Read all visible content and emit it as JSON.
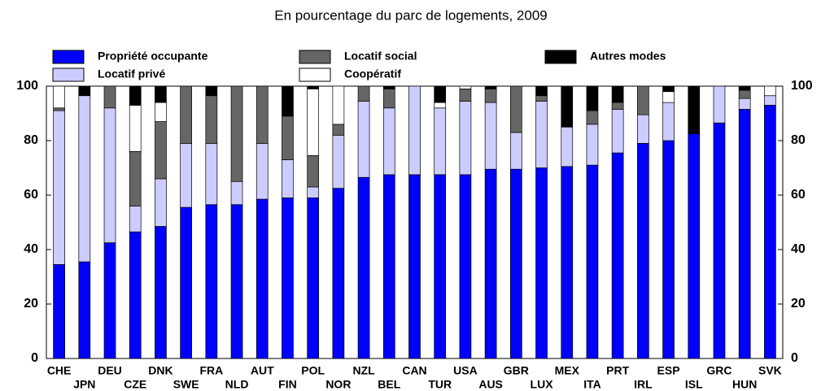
{
  "chart_data": {
    "type": "stacked_bar",
    "title": "En pourcentage du parc de logements, 2009",
    "categories": [
      "CHE",
      "JPN",
      "DEU",
      "CZE",
      "DNK",
      "SWE",
      "FRA",
      "NLD",
      "AUT",
      "FIN",
      "POL",
      "NOR",
      "NZL",
      "BEL",
      "CAN",
      "TUR",
      "USA",
      "AUS",
      "GBR",
      "LUX",
      "MEX",
      "ITA",
      "PRT",
      "IRL",
      "ESP",
      "ISL",
      "GRC",
      "HUN",
      "SVK"
    ],
    "series": [
      {
        "name": "Propriété occupante",
        "color": "#0000ff",
        "values": [
          34.5,
          35.5,
          42.5,
          46.5,
          48.5,
          55.5,
          56.5,
          56.5,
          58.5,
          59,
          59,
          62.5,
          66.5,
          67.5,
          67.5,
          67.5,
          67.5,
          69.5,
          69.5,
          70,
          70.5,
          71,
          75.5,
          79,
          80,
          82.5,
          86.5,
          91.5,
          93
        ]
      },
      {
        "name": "Locatif privé",
        "color": "#ccccff",
        "values": [
          56.5,
          61,
          49.5,
          9.5,
          17.5,
          23.5,
          22.5,
          8.5,
          20.5,
          14,
          4,
          19.5,
          28,
          24.5,
          32.5,
          24.5,
          27,
          24.5,
          13.5,
          24.5,
          14.5,
          15,
          16,
          10.5,
          14,
          0,
          13.5,
          4,
          3.5
        ]
      },
      {
        "name": "Locatif social",
        "color": "#666666",
        "values": [
          1,
          0,
          8,
          20,
          21,
          21,
          17.5,
          35,
          21,
          16,
          11.5,
          4,
          5.5,
          7,
          0,
          0,
          4.5,
          5,
          17,
          2,
          0,
          5,
          2.5,
          10.5,
          0,
          0,
          0,
          3,
          0
        ]
      },
      {
        "name": "Coopératif",
        "color": "#ffffff",
        "values": [
          8,
          0,
          0,
          17,
          7,
          0,
          0,
          0,
          0,
          0,
          24.5,
          14,
          0,
          0,
          0,
          2,
          1,
          0,
          0,
          0,
          0,
          0,
          0,
          0,
          4,
          0,
          0,
          0,
          3.5
        ]
      },
      {
        "name": "Autres modes",
        "color": "#000000",
        "values": [
          0,
          3.5,
          0,
          7,
          6,
          0,
          3.5,
          0,
          0,
          11,
          1,
          0,
          0,
          1,
          0,
          6,
          0,
          1,
          0,
          3.5,
          15,
          9,
          6,
          0,
          2,
          17.5,
          0,
          1.5,
          0
        ]
      }
    ],
    "ylim": [
      0,
      100
    ],
    "yticks": [
      0,
      20,
      40,
      60,
      80,
      100
    ]
  }
}
